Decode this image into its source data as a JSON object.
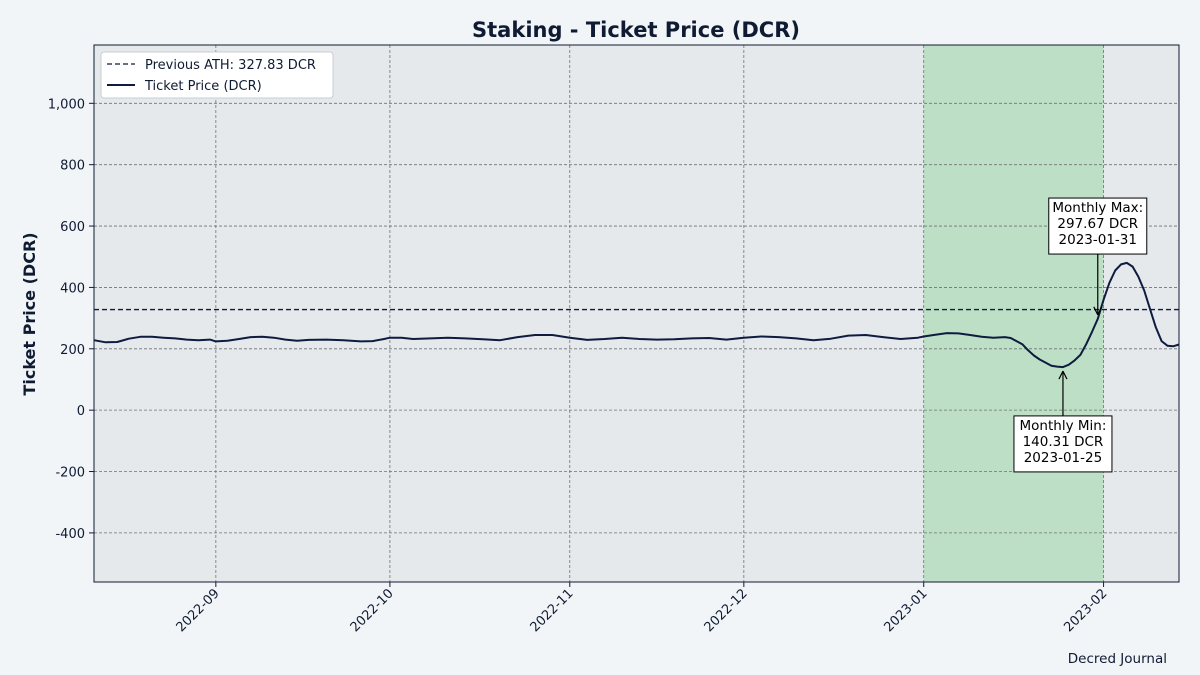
{
  "chart_data": {
    "type": "line",
    "title": "Staking - Ticket Price (DCR)",
    "xlabel": "",
    "ylabel": "Ticket Price (DCR)",
    "ylim": [
      -560,
      1190
    ],
    "xlim": [
      "2022-08-11",
      "2023-02-14"
    ],
    "grid": true,
    "legend_position": "top-left",
    "y_ticks": [
      -400,
      -200,
      0,
      200,
      400,
      600,
      800,
      1000
    ],
    "y_tick_labels": [
      "-400",
      "-200",
      "0",
      "200",
      "400",
      "600",
      "800",
      "1,000"
    ],
    "x_ticks": [
      "2022-09-01",
      "2022-10-01",
      "2022-11-01",
      "2022-12-01",
      "2023-01-01",
      "2023-02-01"
    ],
    "x_tick_labels": [
      "2022-09",
      "2022-10",
      "2022-11",
      "2022-12",
      "2023-01",
      "2023-02"
    ],
    "highlight_range": {
      "start": "2023-01-01",
      "end": "2023-02-01",
      "color": "#bddfc6"
    },
    "series": [
      {
        "name": "Previous ATH: 327.83 DCR",
        "style": "dashed",
        "color": "#0f1b3f",
        "value": 327.83
      },
      {
        "name": "Ticket Price (DCR)",
        "style": "solid",
        "color": "#0f1b3f",
        "points": [
          [
            "2022-08-11",
            228
          ],
          [
            "2022-08-13",
            221
          ],
          [
            "2022-08-15",
            222
          ],
          [
            "2022-08-17",
            233
          ],
          [
            "2022-08-19",
            239
          ],
          [
            "2022-08-21",
            239
          ],
          [
            "2022-08-23",
            236
          ],
          [
            "2022-08-25",
            234
          ],
          [
            "2022-08-27",
            230
          ],
          [
            "2022-08-29",
            228
          ],
          [
            "2022-08-31",
            230
          ],
          [
            "2022-09-01",
            224
          ],
          [
            "2022-09-03",
            226
          ],
          [
            "2022-09-05",
            232
          ],
          [
            "2022-09-07",
            238
          ],
          [
            "2022-09-09",
            239
          ],
          [
            "2022-09-11",
            236
          ],
          [
            "2022-09-13",
            230
          ],
          [
            "2022-09-15",
            226
          ],
          [
            "2022-09-17",
            229
          ],
          [
            "2022-09-20",
            230
          ],
          [
            "2022-09-23",
            228
          ],
          [
            "2022-09-26",
            224
          ],
          [
            "2022-09-28",
            225
          ],
          [
            "2022-09-30",
            232
          ],
          [
            "2022-10-01",
            236
          ],
          [
            "2022-10-03",
            236
          ],
          [
            "2022-10-05",
            232
          ],
          [
            "2022-10-08",
            234
          ],
          [
            "2022-10-11",
            236
          ],
          [
            "2022-10-14",
            234
          ],
          [
            "2022-10-17",
            231
          ],
          [
            "2022-10-20",
            228
          ],
          [
            "2022-10-23",
            238
          ],
          [
            "2022-10-26",
            245
          ],
          [
            "2022-10-29",
            245
          ],
          [
            "2022-11-01",
            236
          ],
          [
            "2022-11-04",
            229
          ],
          [
            "2022-11-07",
            232
          ],
          [
            "2022-11-10",
            236
          ],
          [
            "2022-11-13",
            232
          ],
          [
            "2022-11-16",
            230
          ],
          [
            "2022-11-19",
            231
          ],
          [
            "2022-11-22",
            234
          ],
          [
            "2022-11-25",
            235
          ],
          [
            "2022-11-28",
            230
          ],
          [
            "2022-12-01",
            236
          ],
          [
            "2022-12-04",
            240
          ],
          [
            "2022-12-07",
            238
          ],
          [
            "2022-12-10",
            234
          ],
          [
            "2022-12-13",
            228
          ],
          [
            "2022-12-16",
            233
          ],
          [
            "2022-12-19",
            243
          ],
          [
            "2022-12-22",
            245
          ],
          [
            "2022-12-25",
            238
          ],
          [
            "2022-12-28",
            232
          ],
          [
            "2022-12-31",
            236
          ],
          [
            "2023-01-01",
            240
          ],
          [
            "2023-01-03",
            246
          ],
          [
            "2023-01-05",
            251
          ],
          [
            "2023-01-07",
            250
          ],
          [
            "2023-01-09",
            245
          ],
          [
            "2023-01-11",
            239
          ],
          [
            "2023-01-13",
            236
          ],
          [
            "2023-01-15",
            238
          ],
          [
            "2023-01-16",
            235
          ],
          [
            "2023-01-17",
            225
          ],
          [
            "2023-01-18",
            215
          ],
          [
            "2023-01-19",
            195
          ],
          [
            "2023-01-20",
            178
          ],
          [
            "2023-01-21",
            165
          ],
          [
            "2023-01-22",
            155
          ],
          [
            "2023-01-23",
            145
          ],
          [
            "2023-01-24",
            142
          ],
          [
            "2023-01-25",
            140.31
          ],
          [
            "2023-01-26",
            148
          ],
          [
            "2023-01-27",
            162
          ],
          [
            "2023-01-28",
            180
          ],
          [
            "2023-01-29",
            215
          ],
          [
            "2023-01-30",
            255
          ],
          [
            "2023-01-31",
            297.67
          ],
          [
            "2023-02-01",
            360
          ],
          [
            "2023-02-02",
            415
          ],
          [
            "2023-02-03",
            455
          ],
          [
            "2023-02-04",
            475
          ],
          [
            "2023-02-05",
            480
          ],
          [
            "2023-02-06",
            468
          ],
          [
            "2023-02-07",
            435
          ],
          [
            "2023-02-08",
            390
          ],
          [
            "2023-02-09",
            330
          ],
          [
            "2023-02-10",
            270
          ],
          [
            "2023-02-11",
            225
          ],
          [
            "2023-02-12",
            210
          ],
          [
            "2023-02-13",
            208
          ],
          [
            "2023-02-14",
            214
          ]
        ]
      }
    ],
    "annotations": [
      {
        "name": "monthly-max",
        "lines": [
          "Monthly Max:",
          "297.67 DCR",
          "2023-01-31"
        ],
        "x": "2023-01-31",
        "y": 297.67,
        "text_x": "2023-01-31",
        "text_y": 600
      },
      {
        "name": "monthly-min",
        "lines": [
          "Monthly Min:",
          "140.31 DCR",
          "2023-01-25"
        ],
        "x": "2023-01-25",
        "y": 140.31,
        "text_x": "2023-01-25",
        "text_y": -110
      }
    ]
  },
  "footer": "Decred Journal"
}
